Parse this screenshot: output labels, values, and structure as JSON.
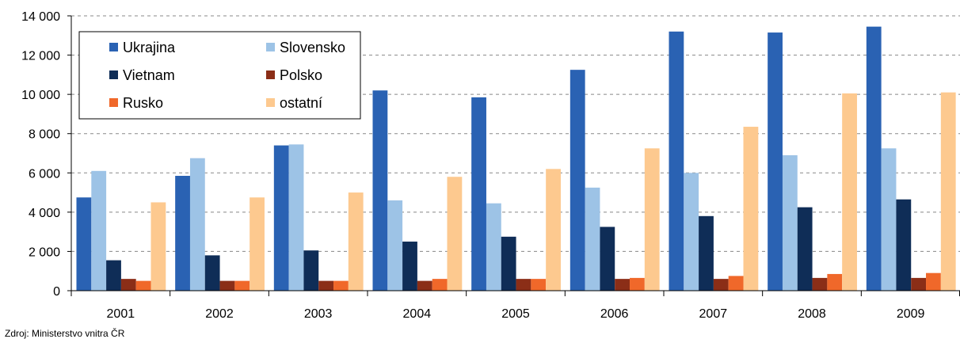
{
  "chart_data": {
    "type": "bar",
    "categories": [
      "2001",
      "2002",
      "2003",
      "2004",
      "2005",
      "2006",
      "2007",
      "2008",
      "2009"
    ],
    "series": [
      {
        "name": "Ukrajina",
        "color": "#2a62b3",
        "values": [
          4750,
          5850,
          7400,
          10200,
          9850,
          11250,
          13200,
          13150,
          13450
        ]
      },
      {
        "name": "Slovensko",
        "color": "#9dc3e6",
        "values": [
          6100,
          6750,
          7450,
          4600,
          4450,
          5250,
          6000,
          6900,
          7250
        ]
      },
      {
        "name": "Vietnam",
        "color": "#0f2d57",
        "values": [
          1550,
          1800,
          2050,
          2500,
          2750,
          3250,
          3800,
          4250,
          4650
        ]
      },
      {
        "name": "Polsko",
        "color": "#8b2e17",
        "values": [
          600,
          500,
          500,
          500,
          600,
          600,
          600,
          650,
          650
        ]
      },
      {
        "name": "Rusko",
        "color": "#f0682a",
        "values": [
          500,
          500,
          500,
          600,
          600,
          650,
          750,
          850,
          900
        ]
      },
      {
        "name": "ostatní",
        "color": "#fdc98f",
        "values": [
          4500,
          4750,
          5000,
          5800,
          6200,
          7250,
          8350,
          10050,
          10100
        ]
      }
    ],
    "y_ticks": [
      "0",
      "2 000",
      "4 000",
      "6 000",
      "8 000",
      "10 000",
      "12 000",
      "14 000"
    ],
    "ylim": [
      0,
      14000
    ],
    "grid": "horizontal dashed",
    "legend_position": "top-left",
    "title": "",
    "xlabel": "",
    "ylabel": ""
  },
  "source": "Zdroj: Ministerstvo vnitra ČR"
}
